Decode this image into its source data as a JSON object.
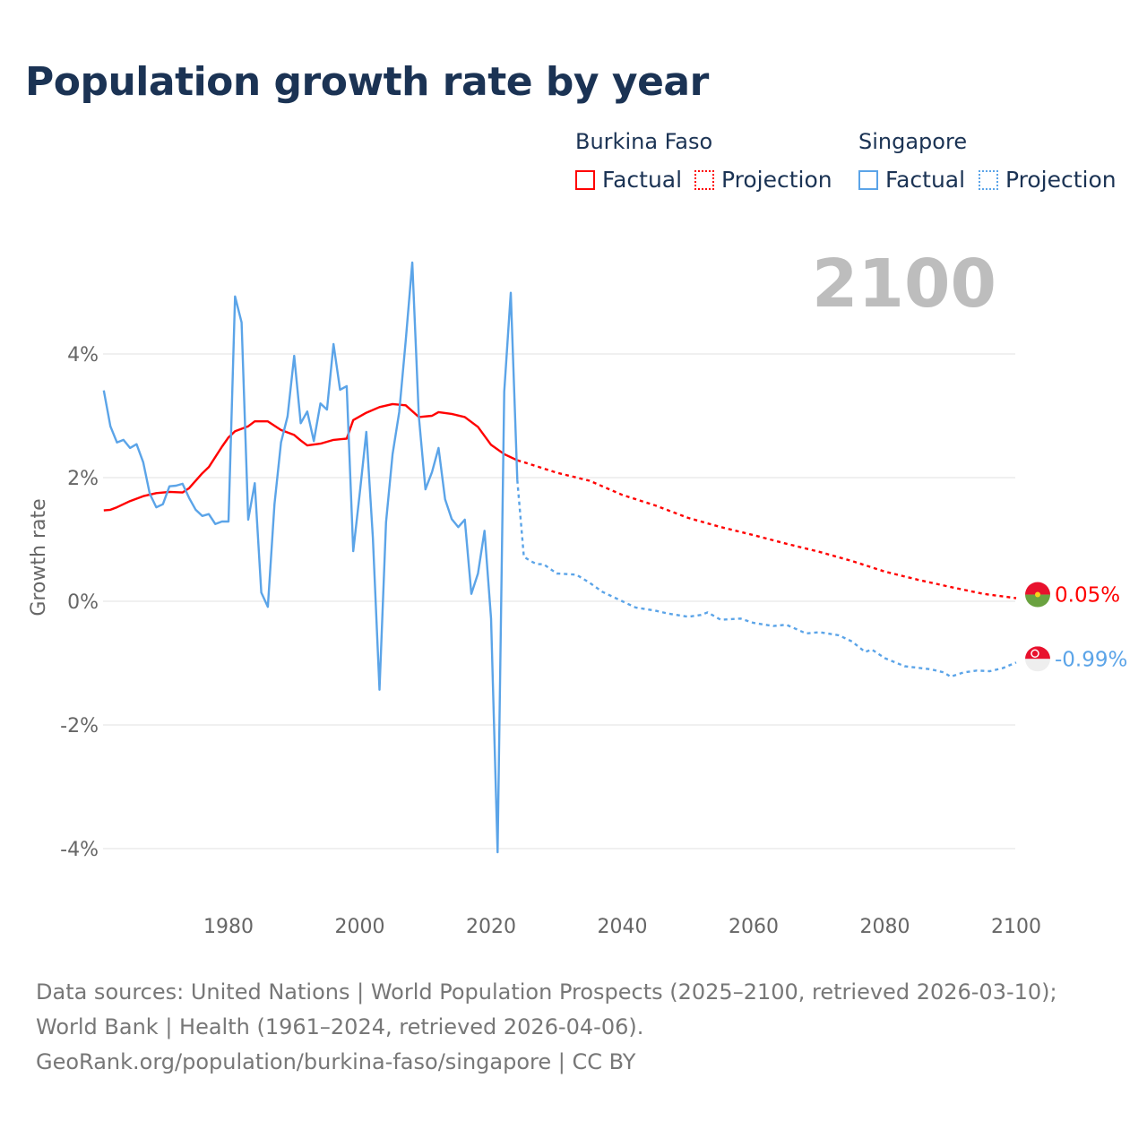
{
  "title": "Population growth rate by year",
  "legend": {
    "groups": [
      {
        "name": "Burkina Faso",
        "color": "#ff0000",
        "factual": "Factual",
        "projection": "Projection"
      },
      {
        "name": "Singapore",
        "color": "#5ba4e8",
        "factual": "Factual",
        "projection": "Projection"
      }
    ]
  },
  "year_indicator": "2100",
  "footer": {
    "sources": "Data sources: United Nations | World Population Prospects (2025–2100, retrieved 2026-03-10); World Bank | Health (1961–2024, retrieved 2026-04-06).",
    "link": "GeoRank.org/population/burkina-faso/singapore | CC BY"
  },
  "chart_data": {
    "type": "line",
    "title": "Population growth rate by year",
    "xlabel": "",
    "ylabel": "Growth rate",
    "xlim": [
      1961,
      2100
    ],
    "ylim": [
      -4.8,
      5.6
    ],
    "grid": true,
    "x_ticks": [
      1980,
      2000,
      2020,
      2040,
      2060,
      2080,
      2100
    ],
    "x_tick_labels": [
      "1980",
      "2000",
      "2020",
      "2040",
      "2060",
      "2080",
      "2100"
    ],
    "y_ticks": [
      4,
      2,
      0,
      -2,
      -4
    ],
    "y_tick_labels": [
      "4%",
      "2%",
      "0%",
      "-2%",
      "-4%"
    ],
    "legend_position": "top-right",
    "series": [
      {
        "name": "Burkina Faso Factual",
        "color": "#ff0000",
        "style": "solid",
        "x": [
          1961,
          1962,
          1963,
          1965,
          1967,
          1969,
          1971,
          1973,
          1974,
          1976,
          1977,
          1979,
          1980,
          1981,
          1983,
          1984,
          1986,
          1988,
          1990,
          1991,
          1992,
          1994,
          1996,
          1998,
          1999,
          2001,
          2003,
          2005,
          2007,
          2009,
          2011,
          2012,
          2014,
          2016,
          2018,
          2020,
          2022,
          2024
        ],
        "y": [
          1.47,
          1.48,
          1.52,
          1.62,
          1.7,
          1.75,
          1.77,
          1.76,
          1.83,
          2.07,
          2.17,
          2.5,
          2.65,
          2.75,
          2.83,
          2.91,
          2.91,
          2.77,
          2.69,
          2.6,
          2.52,
          2.55,
          2.61,
          2.63,
          2.93,
          3.05,
          3.14,
          3.19,
          3.17,
          2.98,
          3.0,
          3.06,
          3.03,
          2.98,
          2.82,
          2.53,
          2.38,
          2.28
        ]
      },
      {
        "name": "Burkina Faso Projection",
        "color": "#ff0000",
        "style": "dotted",
        "x": [
          2024,
          2025,
          2030,
          2035,
          2040,
          2045,
          2050,
          2055,
          2060,
          2065,
          2070,
          2075,
          2080,
          2085,
          2090,
          2095,
          2100
        ],
        "y": [
          2.28,
          2.25,
          2.08,
          1.95,
          1.72,
          1.55,
          1.35,
          1.2,
          1.07,
          0.93,
          0.8,
          0.65,
          0.48,
          0.35,
          0.23,
          0.12,
          0.05
        ]
      },
      {
        "name": "Singapore Factual",
        "color": "#5ba4e8",
        "style": "solid",
        "x": [
          1961,
          1962,
          1963,
          1964,
          1965,
          1966,
          1967,
          1968,
          1969,
          1970,
          1971,
          1972,
          1973,
          1974,
          1975,
          1976,
          1977,
          1978,
          1979,
          1980,
          1981,
          1982,
          1983,
          1984,
          1985,
          1986,
          1987,
          1988,
          1989,
          1990,
          1991,
          1992,
          1993,
          1994,
          1995,
          1996,
          1997,
          1998,
          1999,
          2000,
          2001,
          2002,
          2003,
          2004,
          2005,
          2006,
          2007,
          2008,
          2009,
          2010,
          2011,
          2012,
          2013,
          2014,
          2015,
          2016,
          2017,
          2018,
          2019,
          2020,
          2021,
          2022,
          2023,
          2024
        ],
        "y": [
          3.41,
          2.83,
          2.57,
          2.61,
          2.48,
          2.54,
          2.25,
          1.74,
          1.52,
          1.57,
          1.86,
          1.87,
          1.9,
          1.67,
          1.48,
          1.38,
          1.41,
          1.25,
          1.29,
          1.29,
          4.93,
          4.51,
          1.32,
          1.91,
          0.14,
          -0.09,
          1.57,
          2.57,
          2.99,
          3.97,
          2.88,
          3.07,
          2.59,
          3.2,
          3.1,
          4.16,
          3.42,
          3.48,
          0.81,
          1.75,
          2.74,
          1.03,
          -1.43,
          1.28,
          2.38,
          3.06,
          4.22,
          5.48,
          2.99,
          1.81,
          2.09,
          2.48,
          1.65,
          1.33,
          1.2,
          1.32,
          0.12,
          0.45,
          1.14,
          -0.28,
          -4.06,
          3.39,
          4.99,
          1.96
        ]
      },
      {
        "name": "Singapore Projection",
        "color": "#5ba4e8",
        "style": "dotted",
        "x": [
          2024,
          2025,
          2026,
          2027,
          2028,
          2030,
          2033,
          2035,
          2037,
          2040,
          2042,
          2045,
          2047,
          2050,
          2052,
          2053,
          2055,
          2058,
          2060,
          2063,
          2065,
          2068,
          2070,
          2073,
          2075,
          2077,
          2078,
          2080,
          2083,
          2087,
          2089,
          2090,
          2092,
          2094,
          2096,
          2098,
          2100
        ],
        "y": [
          1.96,
          0.72,
          0.65,
          0.6,
          0.6,
          0.45,
          0.43,
          0.3,
          0.15,
          0.0,
          -0.1,
          -0.15,
          -0.2,
          -0.25,
          -0.22,
          -0.18,
          -0.3,
          -0.28,
          -0.35,
          -0.4,
          -0.38,
          -0.52,
          -0.5,
          -0.55,
          -0.65,
          -0.82,
          -0.78,
          -0.92,
          -1.05,
          -1.1,
          -1.15,
          -1.22,
          -1.15,
          -1.12,
          -1.13,
          -1.08,
          -0.99
        ]
      }
    ],
    "end_labels": [
      {
        "series": "Burkina Faso",
        "value": 0.05,
        "label": "0.05%",
        "color": "#ff0000"
      },
      {
        "series": "Singapore",
        "value": -0.99,
        "label": "-0.99%",
        "color": "#5ba4e8"
      }
    ]
  }
}
